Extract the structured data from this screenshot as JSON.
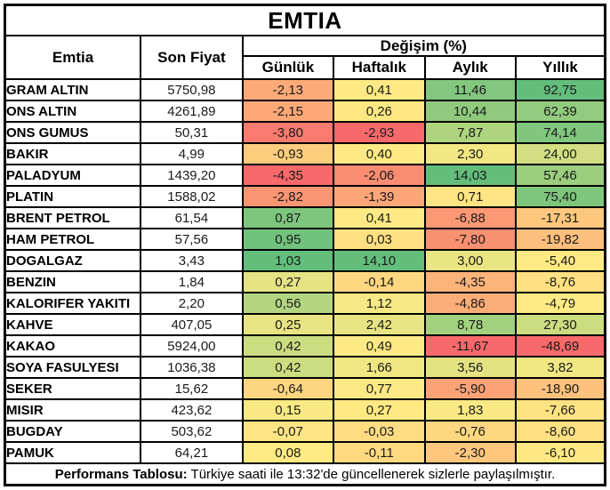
{
  "title": "EMTIA",
  "header": {
    "commodity": "Emtia",
    "last_price": "Son Fiyat",
    "change_group": "Değişim (%)",
    "periods": {
      "daily": "Günlük",
      "weekly": "Haftalık",
      "monthly": "Aylık",
      "yearly": "Yıllık"
    }
  },
  "rows": [
    {
      "name": "GRAM ALTIN",
      "price": "5750,98",
      "changes": [
        "-2,13",
        "0,41",
        "11,46",
        "92,75"
      ],
      "colors": [
        "#FCAA77",
        "#FEEA84",
        "#82C77D",
        "#63BE7B"
      ]
    },
    {
      "name": "ONS ALTIN",
      "price": "4261,89",
      "changes": [
        "-2,15",
        "0,26",
        "10,44",
        "62,39"
      ],
      "colors": [
        "#FCA977",
        "#FFE883",
        "#8FCA7D",
        "#93CC7E"
      ]
    },
    {
      "name": "ONS GUMUS",
      "price": "50,31",
      "changes": [
        "-3,80",
        "-2,93",
        "7,87",
        "74,14"
      ],
      "colors": [
        "#F97A6E",
        "#F8696B",
        "#AED47F",
        "#80C67D"
      ]
    },
    {
      "name": "BAKIR",
      "price": "4,99",
      "changes": [
        "-0,93",
        "0,40",
        "2,30",
        "24,00"
      ],
      "colors": [
        "#FDCD7E",
        "#FEEA84",
        "#F2E783",
        "#D1DE81"
      ]
    },
    {
      "name": "PALADYUM",
      "price": "1439,20",
      "changes": [
        "-4,35",
        "-2,06",
        "14,03",
        "57,46"
      ],
      "colors": [
        "#F8696B",
        "#FA8C72",
        "#63BE7B",
        "#9BCE7E"
      ]
    },
    {
      "name": "PLATIN",
      "price": "1588,02",
      "changes": [
        "-2,82",
        "-1,39",
        "0,71",
        "75,40"
      ],
      "colors": [
        "#FA9574",
        "#FBA677",
        "#FFE583",
        "#7FC67D"
      ]
    },
    {
      "name": "BRENT PETROL",
      "price": "61,54",
      "changes": [
        "0,87",
        "0,41",
        "-6,88",
        "-17,31"
      ],
      "colors": [
        "#7EC67D",
        "#FEEA84",
        "#FB9974",
        "#FDC77D"
      ]
    },
    {
      "name": "HAM PETROL",
      "price": "57,56",
      "changes": [
        "0,95",
        "0,03",
        "-7,80",
        "-19,82"
      ],
      "colors": [
        "#71C27C",
        "#FEDF82",
        "#FA9072",
        "#FDBF7C"
      ]
    },
    {
      "name": "DOGALGAZ",
      "price": "3,43",
      "changes": [
        "1,03",
        "14,10",
        "3,00",
        "-5,40"
      ],
      "colors": [
        "#63BE7B",
        "#63BE7B",
        "#EAE583",
        "#FFEA84"
      ]
    },
    {
      "name": "BENZIN",
      "price": "1,84",
      "changes": [
        "0,27",
        "-0,14",
        "-4,35",
        "-8,76"
      ],
      "colors": [
        "#E5E383",
        "#FED880",
        "#FCB379",
        "#FEE082"
      ]
    },
    {
      "name": "KALORIFER YAKITI",
      "price": "2,20",
      "changes": [
        "0,56",
        "1,12",
        "-4,86",
        "-4,79"
      ],
      "colors": [
        "#B3D580",
        "#F6E884",
        "#FCAD78",
        "#FEEB84"
      ]
    },
    {
      "name": "KAHVE",
      "price": "407,05",
      "changes": [
        "0,25",
        "2,42",
        "8,78",
        "27,30"
      ],
      "colors": [
        "#E8E483",
        "#E7E483",
        "#A3D17F",
        "#CBDC81"
      ]
    },
    {
      "name": "KAKAO",
      "price": "5924,00",
      "changes": [
        "0,42",
        "0,49",
        "-11,67",
        "-48,69"
      ],
      "colors": [
        "#CBDC81",
        "#FDEA84",
        "#F8696B",
        "#F8696B"
      ]
    },
    {
      "name": "SOYA FASULYESI",
      "price": "1036,38",
      "changes": [
        "0,42",
        "1,66",
        "3,56",
        "3,82"
      ],
      "colors": [
        "#CBDC81",
        "#F0E783",
        "#E3E382",
        "#F1E783"
      ]
    },
    {
      "name": "SEKER",
      "price": "15,62",
      "changes": [
        "-0,64",
        "0,77",
        "-5,90",
        "-18,90"
      ],
      "colors": [
        "#FED580",
        "#FAE984",
        "#FBA376",
        "#FDC27C"
      ]
    },
    {
      "name": "MISIR",
      "price": "423,62",
      "changes": [
        "0,15",
        "0,27",
        "1,83",
        "-7,66"
      ],
      "colors": [
        "#F9E984",
        "#FFE983",
        "#F8E984",
        "#FEE382"
      ]
    },
    {
      "name": "BUGDAY",
      "price": "503,62",
      "changes": [
        "-0,07",
        "-0,03",
        "-0,76",
        "-8,60"
      ],
      "colors": [
        "#FFE583",
        "#FEDC81",
        "#FED780",
        "#FEE082"
      ]
    },
    {
      "name": "PAMUK",
      "price": "64,21",
      "changes": [
        "0,08",
        "-0,11",
        "-2,30",
        "-6,10"
      ],
      "colors": [
        "#FFEA84",
        "#FED980",
        "#FDC77D",
        "#FFE883"
      ]
    }
  ],
  "footer": {
    "label": "Performans Tablosu:",
    "text": " Türkiye saati ile 13:32'de güncellenerek sizlerle paylaşılmıştır."
  },
  "colors": {
    "border": "#000000",
    "background": "#FFFFFF",
    "scale_low": "#F8696B",
    "scale_mid": "#FFEB84",
    "scale_high": "#63BE7B"
  },
  "chart_data": {
    "type": "table",
    "title": "EMTIA",
    "columns": [
      "Emtia",
      "Son Fiyat",
      "Günlük",
      "Haftalık",
      "Aylık",
      "Yıllık"
    ],
    "change_unit": "Değişim (%)",
    "heatmap_scale": {
      "low": "#F8696B",
      "mid": "#FFEB84",
      "high": "#63BE7B"
    },
    "rows": [
      [
        "GRAM ALTIN",
        5750.98,
        -2.13,
        0.41,
        11.46,
        92.75
      ],
      [
        "ONS ALTIN",
        4261.89,
        -2.15,
        0.26,
        10.44,
        62.39
      ],
      [
        "ONS GUMUS",
        50.31,
        -3.8,
        -2.93,
        7.87,
        74.14
      ],
      [
        "BAKIR",
        4.99,
        -0.93,
        0.4,
        2.3,
        24.0
      ],
      [
        "PALADYUM",
        1439.2,
        -4.35,
        -2.06,
        14.03,
        57.46
      ],
      [
        "PLATIN",
        1588.02,
        -2.82,
        -1.39,
        0.71,
        75.4
      ],
      [
        "BRENT PETROL",
        61.54,
        0.87,
        0.41,
        -6.88,
        -17.31
      ],
      [
        "HAM PETROL",
        57.56,
        0.95,
        0.03,
        -7.8,
        -19.82
      ],
      [
        "DOGALGAZ",
        3.43,
        1.03,
        14.1,
        3.0,
        -5.4
      ],
      [
        "BENZIN",
        1.84,
        0.27,
        -0.14,
        -4.35,
        -8.76
      ],
      [
        "KALORIFER YAKITI",
        2.2,
        0.56,
        1.12,
        -4.86,
        -4.79
      ],
      [
        "KAHVE",
        407.05,
        0.25,
        2.42,
        8.78,
        27.3
      ],
      [
        "KAKAO",
        5924.0,
        0.42,
        0.49,
        -11.67,
        -48.69
      ],
      [
        "SOYA FASULYESI",
        1036.38,
        0.42,
        1.66,
        3.56,
        3.82
      ],
      [
        "SEKER",
        15.62,
        -0.64,
        0.77,
        -5.9,
        -18.9
      ],
      [
        "MISIR",
        423.62,
        0.15,
        0.27,
        1.83,
        -7.66
      ],
      [
        "BUGDAY",
        503.62,
        -0.07,
        -0.03,
        -0.76,
        -8.6
      ],
      [
        "PAMUK",
        64.21,
        0.08,
        -0.11,
        -2.3,
        -6.1
      ]
    ],
    "footnote": "Performans Tablosu: Türkiye saati ile 13:32'de güncellenerek sizlerle paylaşılmıştır."
  }
}
